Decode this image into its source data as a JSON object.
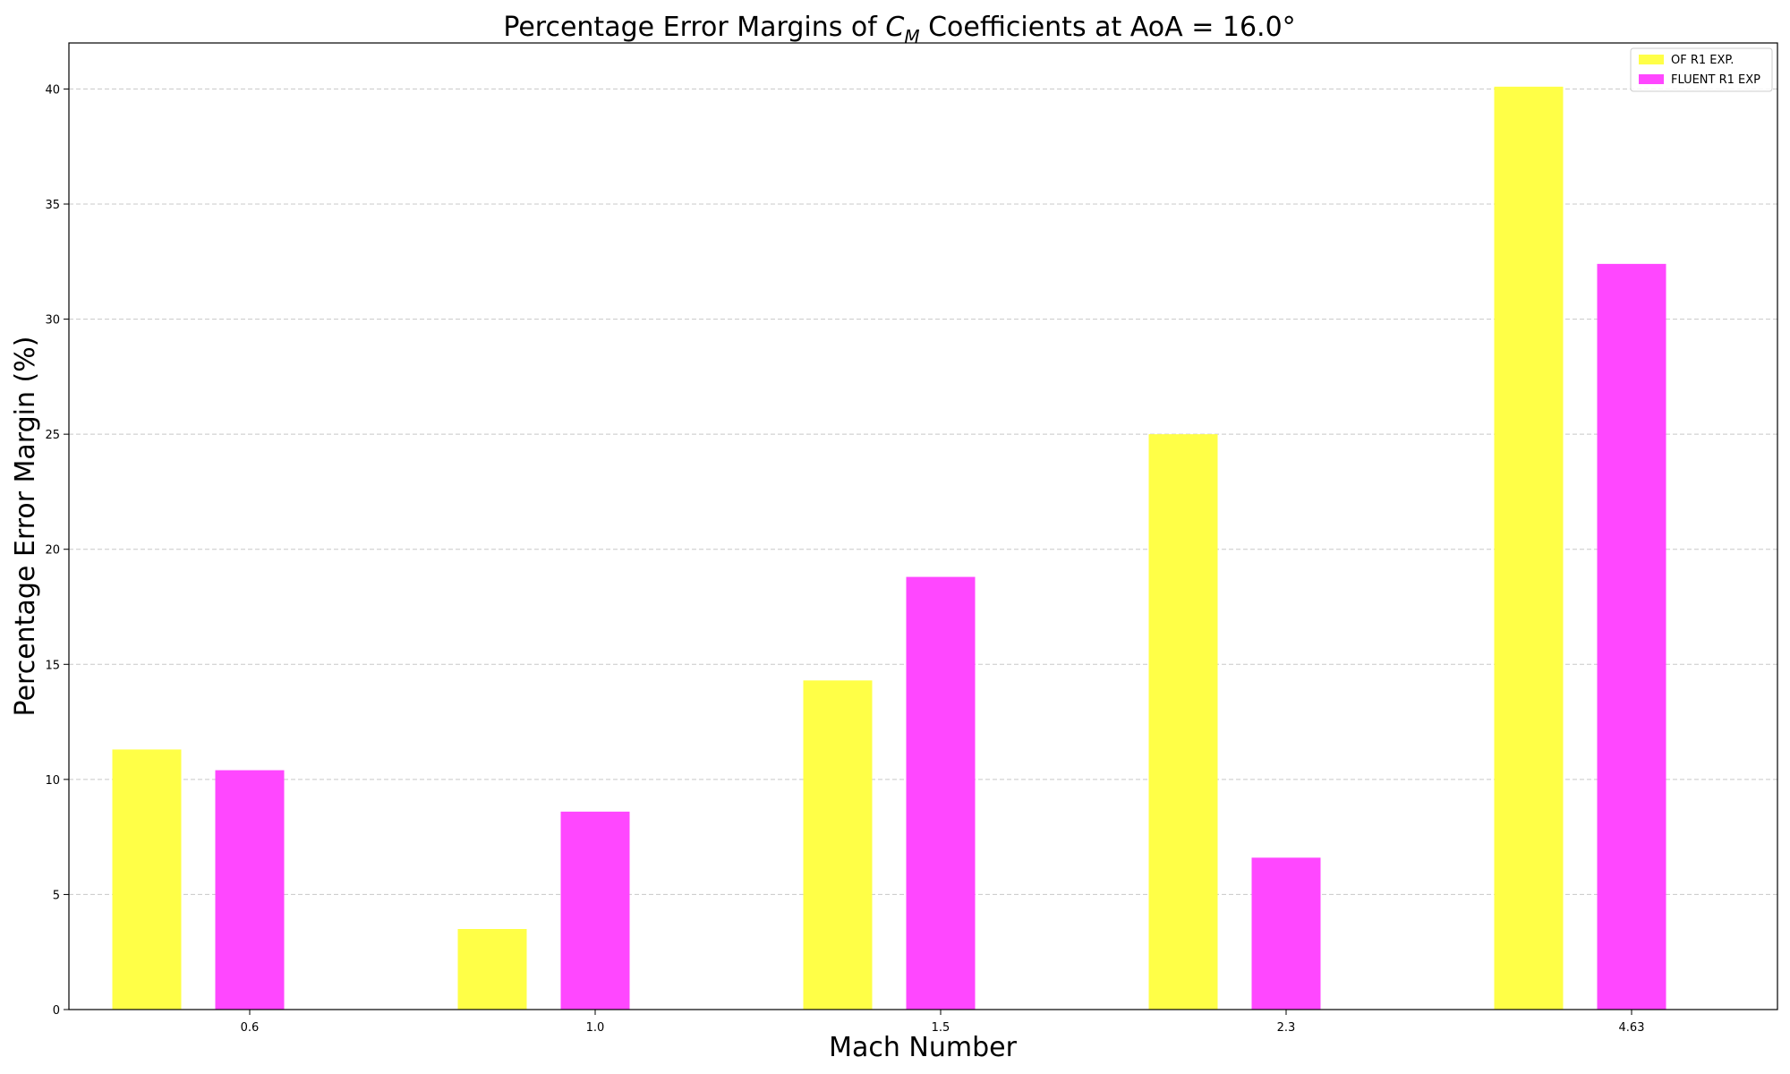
{
  "chart_data": {
    "type": "bar",
    "title_parts": {
      "prefix": "Percentage Error Margins of ",
      "symbol": "C",
      "subscript": "M",
      "suffix": " Coefficients at AoA = 16.0°"
    },
    "xlabel": "Mach Number",
    "ylabel": "Percentage Error Margin (%)",
    "categories": [
      "0.6",
      "1.0",
      "1.5",
      "2.3",
      "4.63"
    ],
    "series": [
      {
        "name": "OF R1 EXP.",
        "color": "#ffff47",
        "values": [
          11.3,
          3.5,
          14.3,
          25.0,
          40.1
        ]
      },
      {
        "name": "FLUENT R1 EXP",
        "color": "#ff47ff",
        "values": [
          10.4,
          8.6,
          18.8,
          6.6,
          32.4
        ]
      }
    ],
    "ylim": [
      0,
      42
    ],
    "yticks": [
      0,
      5,
      10,
      15,
      20,
      25,
      30,
      35,
      40
    ],
    "grid": "y-dashed",
    "legend": "top-right"
  }
}
